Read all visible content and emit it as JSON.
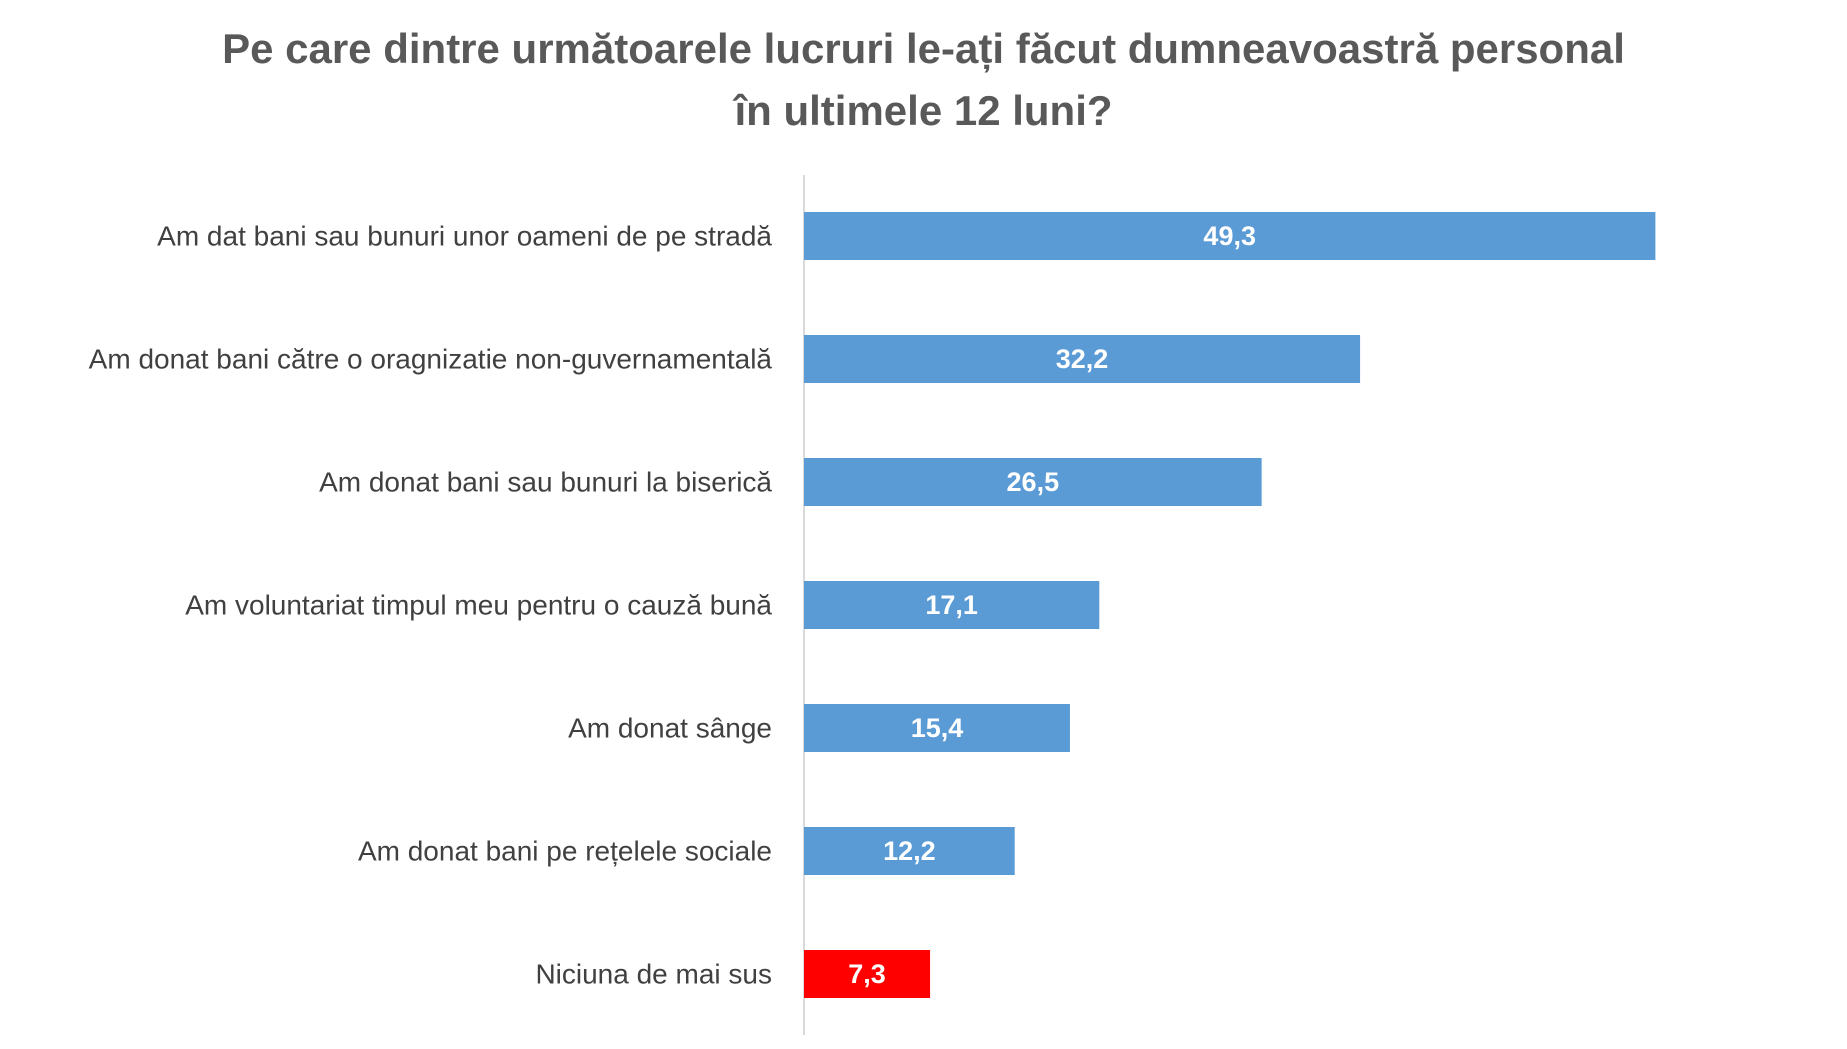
{
  "chart_data": {
    "type": "bar",
    "orientation": "horizontal",
    "title_lines": [
      "Pe care dintre următoarele lucruri le-ați făcut dumneavoastră personal",
      "în ultimele 12 luni?"
    ],
    "categories": [
      "Am dat bani sau bunuri unor oameni de pe stradă",
      "Am donat bani către o oragnizatie non-guvernamentală",
      "Am donat bani sau bunuri la biserică",
      "Am voluntariat timpul meu pentru o cauză bună",
      "Am donat sânge",
      "Am donat bani pe rețelele sociale",
      "Niciuna de mai sus"
    ],
    "values": [
      49.3,
      32.2,
      26.5,
      17.1,
      15.4,
      12.2,
      7.3
    ],
    "value_labels": [
      "49,3",
      "32,2",
      "26,5",
      "17,1",
      "15,4",
      "12,2",
      "7,3"
    ],
    "colors": [
      "#5B9BD5",
      "#5B9BD5",
      "#5B9BD5",
      "#5B9BD5",
      "#5B9BD5",
      "#5B9BD5",
      "#FF0000"
    ],
    "xlim": [
      0,
      55
    ],
    "grid": false,
    "legend": "none"
  }
}
